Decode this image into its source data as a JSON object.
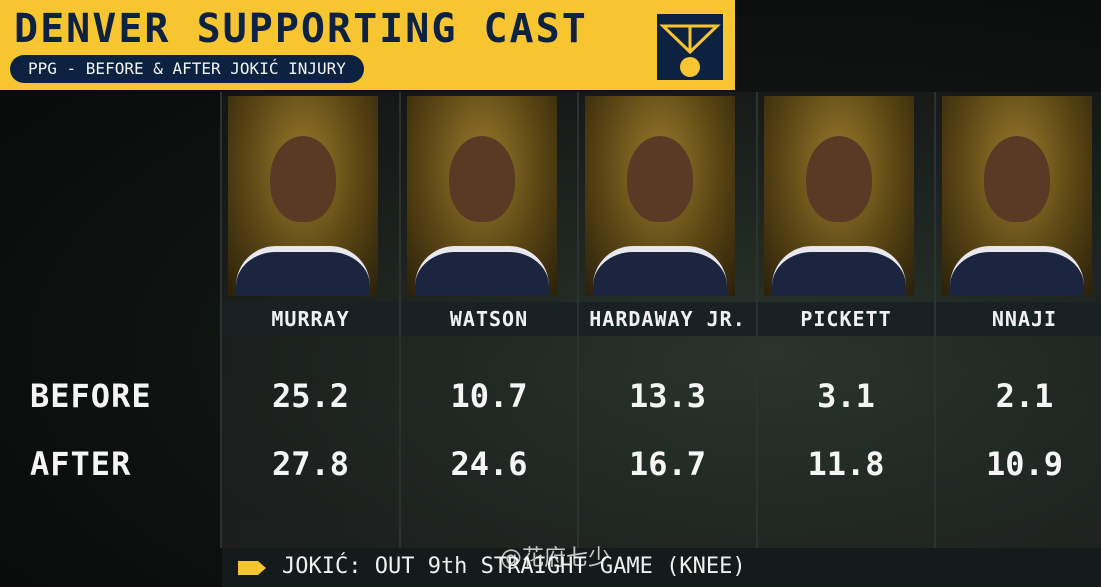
{
  "header": {
    "title": "DENVER SUPPORTING CAST",
    "subtitle": "PPG - BEFORE & AFTER JOKIĆ INJURY"
  },
  "table": {
    "columns": [
      "MURRAY",
      "WATSON",
      "HARDAWAY JR.",
      "PICKETT",
      "NNAJI"
    ],
    "rows": [
      {
        "label": "BEFORE",
        "values": [
          25.2,
          10.7,
          13.3,
          3.1,
          2.1
        ]
      },
      {
        "label": "AFTER",
        "values": [
          27.8,
          24.6,
          16.7,
          11.8,
          10.9
        ]
      }
    ]
  },
  "footer": {
    "text": "JOKIĆ: OUT 9th STRAIGHT GAME (KNEE)"
  },
  "watermark": "@花府七少"
}
